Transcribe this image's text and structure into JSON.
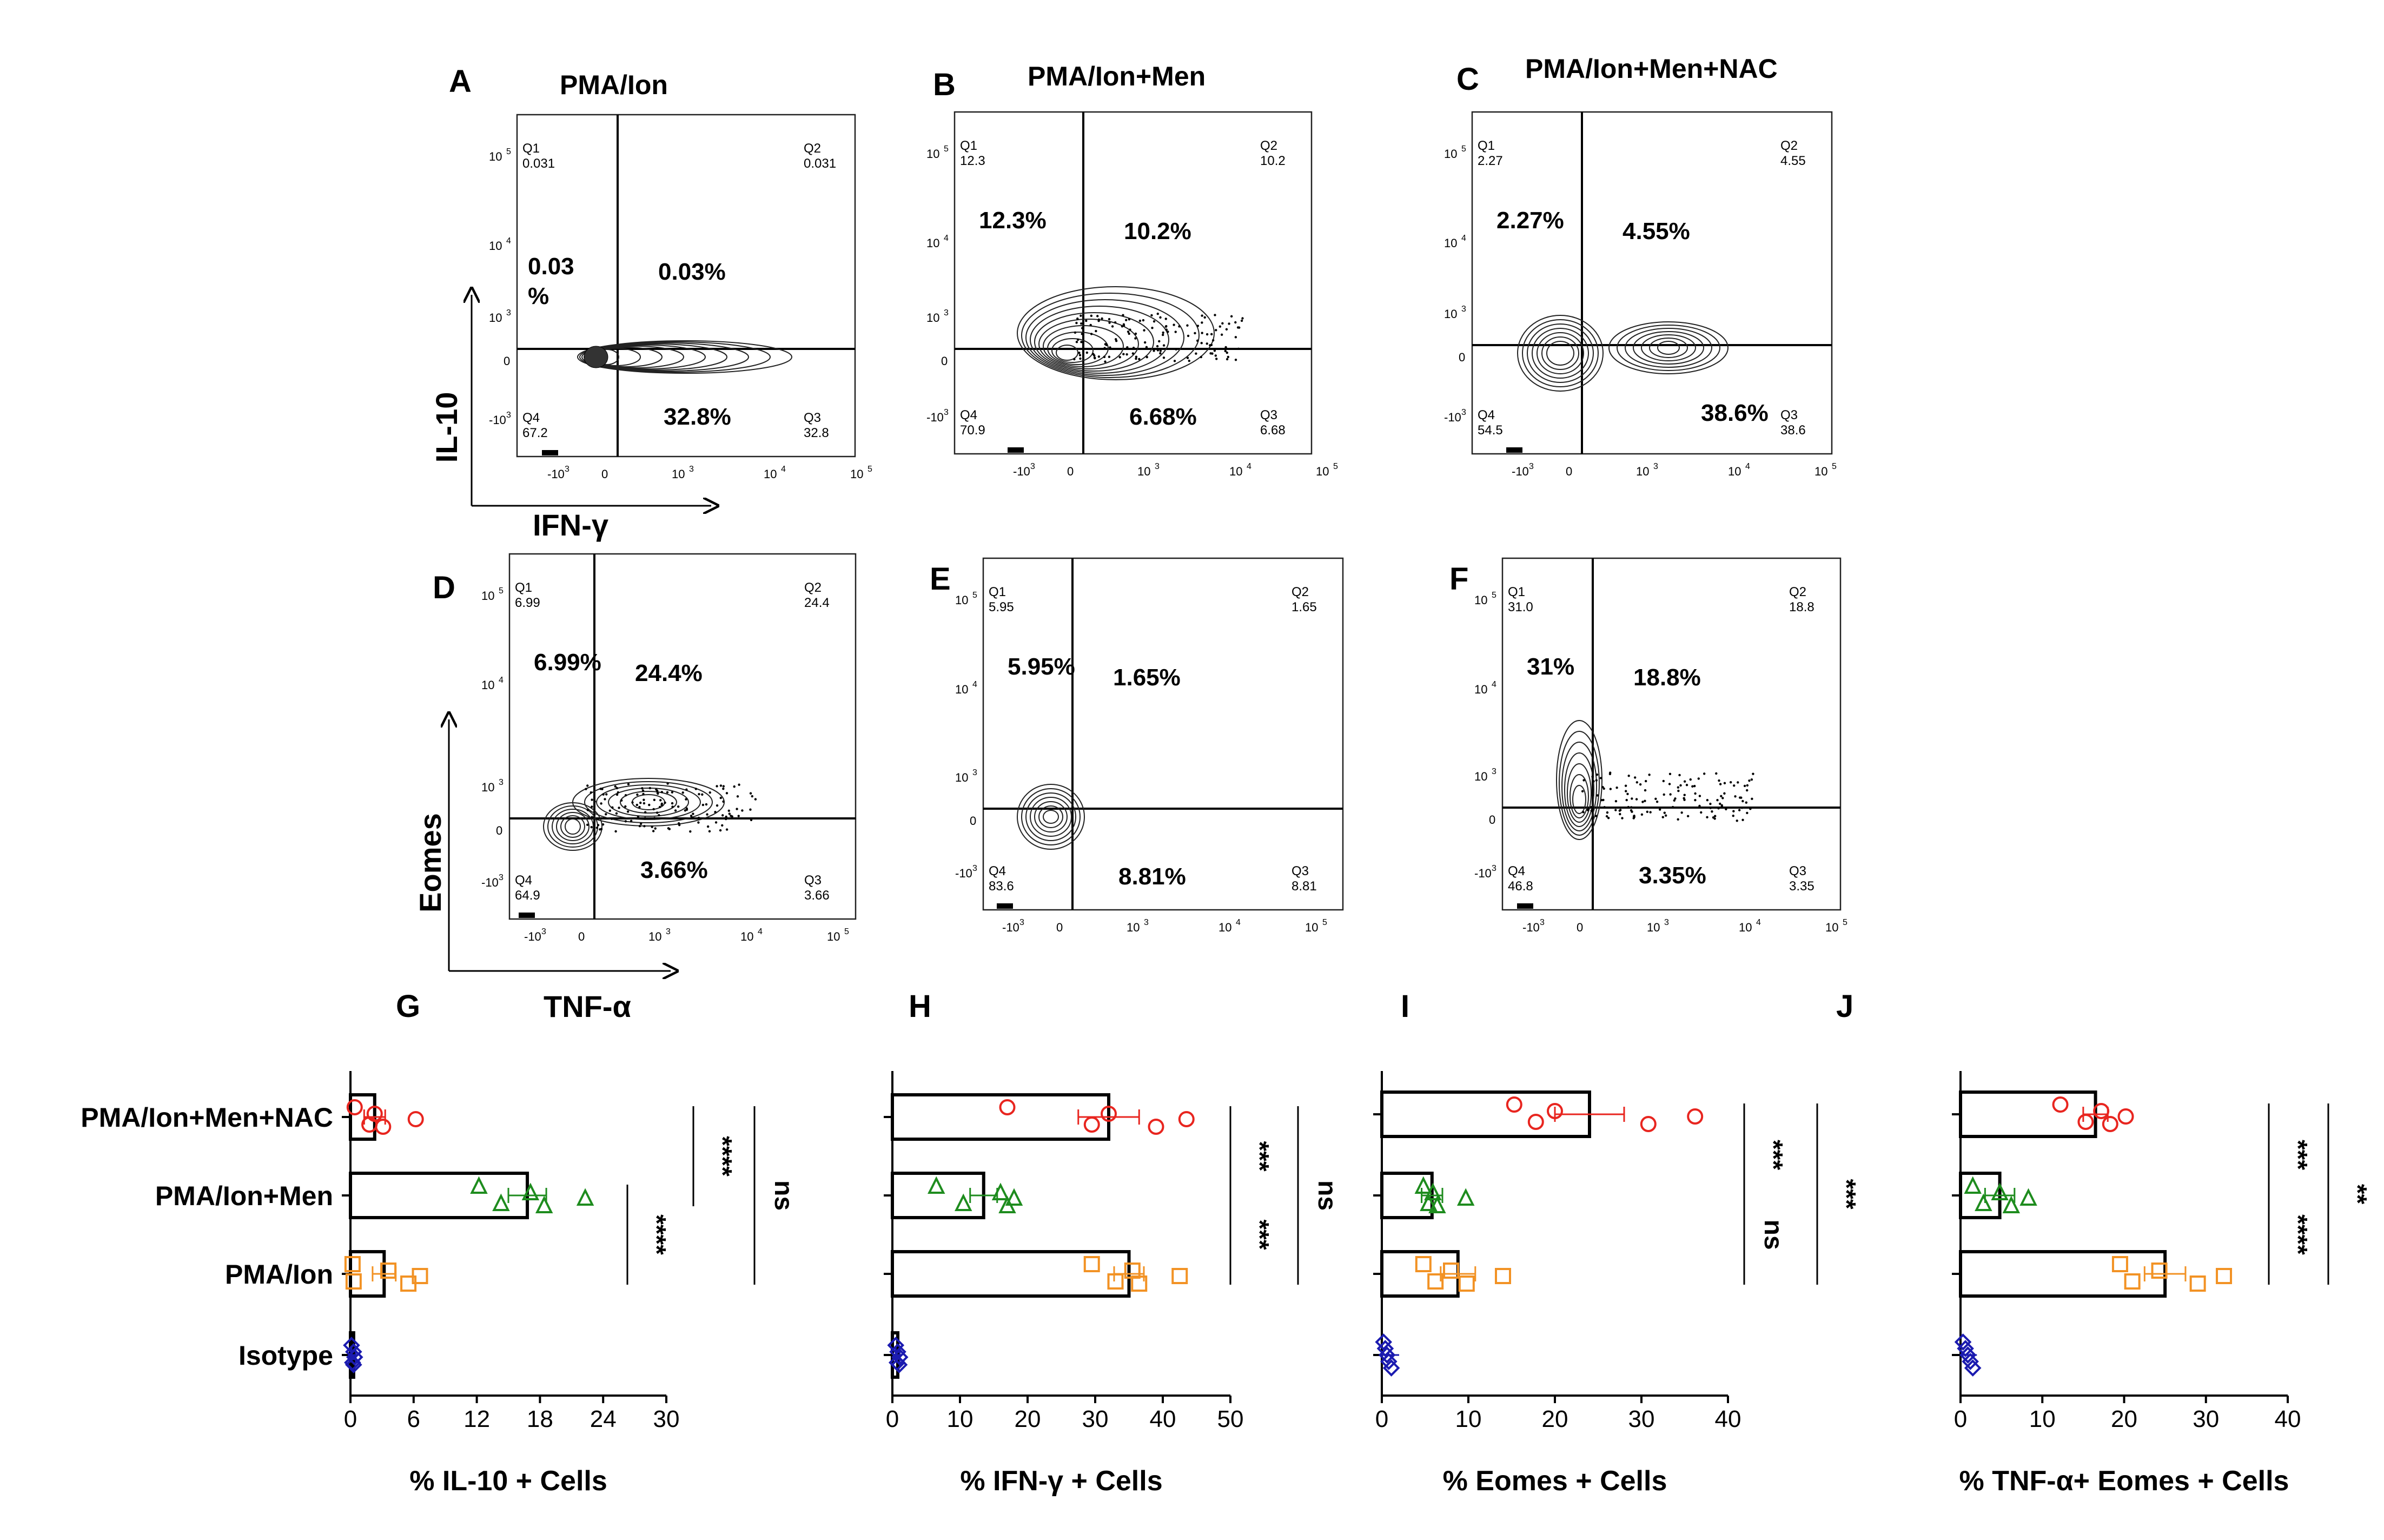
{
  "flow_panels": [
    {
      "letter": "A",
      "title": "PMA/Ion",
      "q1": "0.031",
      "q2": "0.031",
      "q3": "32.8",
      "q4": "67.2",
      "big": {
        "q1a": "0.03",
        "q1b": "%",
        "q2": "0.03%",
        "q3": "32.8%"
      }
    },
    {
      "letter": "B",
      "title": "PMA/Ion+Men",
      "q1": "12.3",
      "q2": "10.2",
      "q3": "6.68",
      "q4": "70.9",
      "big": {
        "q1": "12.3%",
        "q2": "10.2%",
        "q3": "6.68%"
      }
    },
    {
      "letter": "C",
      "title": "PMA/Ion+Men+NAC",
      "q1": "2.27",
      "q2": "4.55",
      "q3": "38.6",
      "q4": "54.5",
      "big": {
        "q1": "2.27%",
        "q2": "4.55%",
        "q3": "38.6%"
      }
    },
    {
      "letter": "D",
      "title": "",
      "q1": "6.99",
      "q2": "24.4",
      "q3": "3.66",
      "q4": "64.9",
      "big": {
        "q1": "6.99%",
        "q2": "24.4%",
        "q3": "3.66%"
      }
    },
    {
      "letter": "E",
      "title": "",
      "q1": "5.95",
      "q2": "1.65",
      "q3": "8.81",
      "q4": "83.6",
      "big": {
        "q1": "5.95%",
        "q2": "1.65%",
        "q3": "8.81%"
      }
    },
    {
      "letter": "F",
      "title": "",
      "q1": "31.0",
      "q2": "18.8",
      "q3": "3.35",
      "q4": "46.8",
      "big": {
        "q1": "31%",
        "q2": "18.8%",
        "q3": "3.35%"
      }
    }
  ],
  "flow_axes": {
    "row1_y": "IL-10",
    "row1_x": "IFN-γ",
    "row2_y": "Eomes",
    "row2_x": "TNF-α",
    "tick_x": [
      "-10",
      "0",
      "10",
      "10",
      "10",
      "10"
    ],
    "tick_x_exp": [
      "3",
      "",
      "3",
      "4",
      "5"
    ],
    "quadrant_ids": [
      "Q1",
      "Q2",
      "Q3",
      "Q4"
    ]
  },
  "groups": [
    "PMA/Ion+Men+NAC",
    "PMA/Ion+Men",
    "PMA/Ion",
    "Isotype"
  ],
  "colors": {
    "nac": "#e8251f",
    "men": "#1e8c1e",
    "ion": "#f29224",
    "iso": "#1b1bb0"
  },
  "chart_data": [
    {
      "type": "bar",
      "letter": "G",
      "orientation": "horizontal",
      "xlabel": "%  IL-10 + Cells",
      "xlim": [
        0,
        30
      ],
      "ticks": [
        0,
        6,
        12,
        18,
        24,
        30
      ],
      "categories": [
        "PMA/Ion+Men+NAC",
        "PMA/Ion+Men",
        "PMA/Ion",
        "Isotype"
      ],
      "values": [
        2.3,
        16.8,
        3.2,
        0.3
      ],
      "errors": [
        1.0,
        1.8,
        1.1,
        0.2
      ],
      "points": [
        [
          0.4,
          1.8,
          2.3,
          3.1,
          6.2
        ],
        [
          12.2,
          14.3,
          17.1,
          18.4,
          22.3
        ],
        [
          0.2,
          0.3,
          3.6,
          5.5,
          6.6
        ],
        [
          0.1,
          0.2,
          0.3,
          0.3,
          0.4
        ]
      ],
      "significance": [
        {
          "from": 0,
          "to": 1,
          "label": "****"
        },
        {
          "from": 1,
          "to": 2,
          "label": "****"
        },
        {
          "from": 0,
          "to": 2,
          "label": "ns"
        }
      ]
    },
    {
      "type": "bar",
      "letter": "H",
      "orientation": "horizontal",
      "xlabel": "% IFN-γ + Cells",
      "xlim": [
        0,
        50
      ],
      "ticks": [
        0,
        10,
        20,
        30,
        40,
        50
      ],
      "categories": [
        "PMA/Ion+Men+NAC",
        "PMA/Ion+Men",
        "PMA/Ion",
        "Isotype"
      ],
      "values": [
        32,
        13.5,
        35,
        0.8
      ],
      "errors": [
        4.5,
        2.0,
        2.2,
        0.3
      ],
      "points": [
        [
          17,
          29.5,
          32,
          39,
          43.5
        ],
        [
          6.5,
          10.5,
          16,
          17,
          18
        ],
        [
          29.5,
          33,
          35.5,
          36.5,
          42.5
        ],
        [
          0.5,
          0.7,
          0.8,
          1.0,
          1.1
        ]
      ],
      "significance": [
        {
          "from": 0,
          "to": 1,
          "label": "***"
        },
        {
          "from": 1,
          "to": 2,
          "label": "***"
        },
        {
          "from": 0,
          "to": 2,
          "label": "ns"
        }
      ]
    },
    {
      "type": "bar",
      "letter": "I",
      "orientation": "horizontal",
      "xlabel": "% Eomes + Cells",
      "xlim": [
        0,
        40
      ],
      "ticks": [
        0,
        10,
        20,
        30,
        40
      ],
      "categories": [
        "PMA/Ion+Men+NAC",
        "PMA/Ion+Men",
        "PMA/Ion"
      ],
      "values": [
        24,
        5.8,
        8.8
      ],
      "errors": [
        4.0,
        1.2,
        2.0
      ],
      "points": [
        [
          15.3,
          17.8,
          20.0,
          30.8,
          36.2
        ],
        [
          4.8,
          5.4,
          5.9,
          6.4,
          9.7
        ],
        [
          4.8,
          6.2,
          8.0,
          9.8,
          14.0
        ]
      ],
      "isotype_points": [
        0.2,
        0.4,
        0.6,
        0.8,
        1.1
      ],
      "significance": [
        {
          "from": 0,
          "to": 1,
          "label": "***"
        },
        {
          "from": 1,
          "to": 2,
          "label": "ns"
        },
        {
          "from": 0,
          "to": 2,
          "label": "***"
        }
      ]
    },
    {
      "type": "bar",
      "letter": "J",
      "orientation": "horizontal",
      "xlabel": "% TNF-α+ Eomes + Cells",
      "xlim": [
        0,
        40
      ],
      "ticks": [
        0,
        10,
        20,
        30,
        40
      ],
      "categories": [
        "PMA/Ion+Men+NAC",
        "PMA/Ion+Men",
        "PMA/Ion"
      ],
      "values": [
        16.5,
        4.8,
        25
      ],
      "errors": [
        1.5,
        1.8,
        2.5
      ],
      "points": [
        [
          12.2,
          15.3,
          17.2,
          18.3,
          20.2
        ],
        [
          1.5,
          2.8,
          4.8,
          6.2,
          8.3
        ],
        [
          19.5,
          21.0,
          24.3,
          29.0,
          32.2
        ]
      ],
      "isotype_points": [
        0.3,
        0.6,
        0.9,
        1.2,
        1.5
      ],
      "significance": [
        {
          "from": 0,
          "to": 1,
          "label": "***"
        },
        {
          "from": 1,
          "to": 2,
          "label": "****"
        },
        {
          "from": 0,
          "to": 2,
          "label": "**"
        }
      ]
    }
  ]
}
